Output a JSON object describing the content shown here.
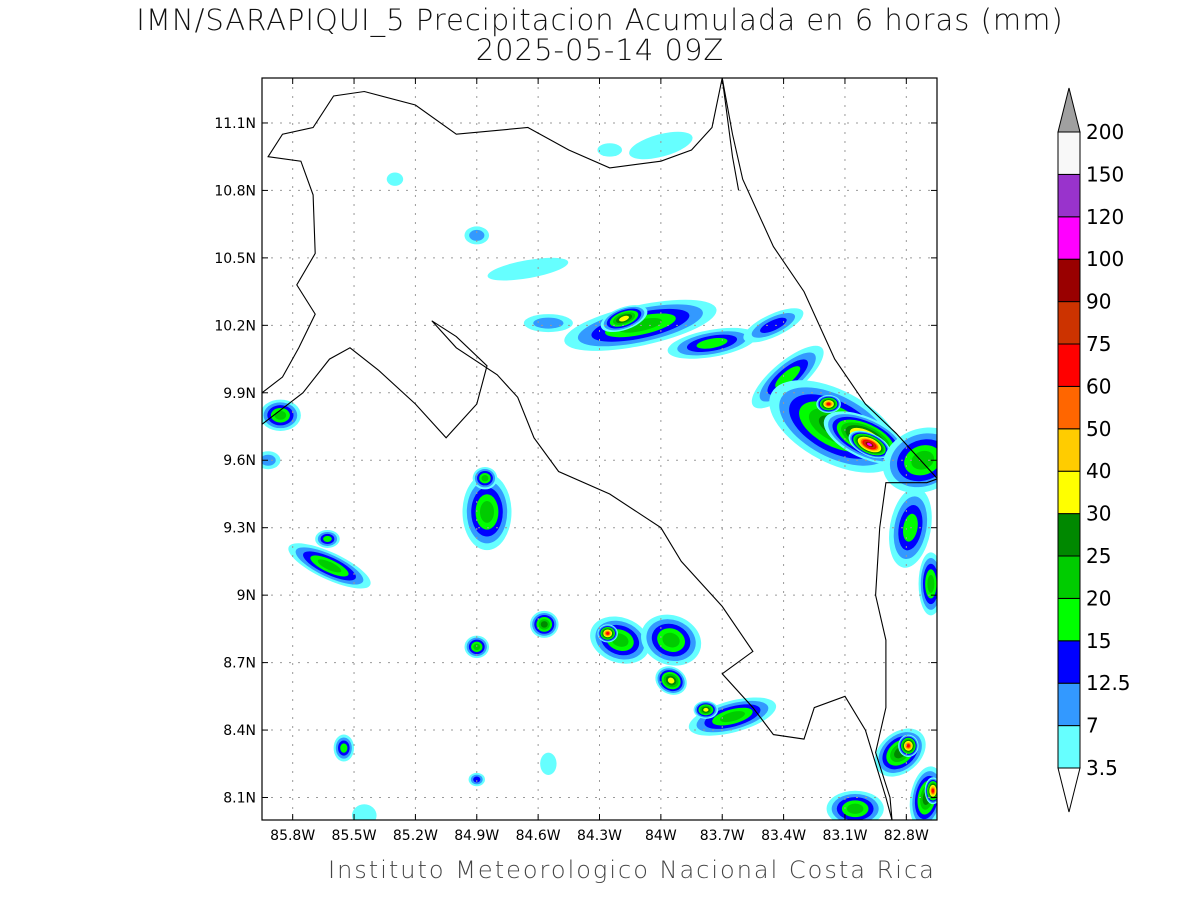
{
  "title": "IMN/SARAPIQUI_5 Precipitacion Acumulada en 6 horas (mm)",
  "subtitle": "2025-05-14 09Z",
  "footer": "Instituto Meteorologico Nacional Costa Rica",
  "map": {
    "lat_labels": [
      "11.1N",
      "10.8N",
      "10.5N",
      "10.2N",
      "9.9N",
      "9.6N",
      "9.3N",
      "9N",
      "8.7N",
      "8.4N",
      "8.1N"
    ],
    "lon_labels": [
      "85.8W",
      "85.5W",
      "85.2W",
      "84.9W",
      "84.6W",
      "84.3W",
      "84W",
      "83.7W",
      "83.4W",
      "83.1W",
      "82.8W"
    ],
    "lat_values": [
      11.1,
      10.8,
      10.5,
      10.2,
      9.9,
      9.6,
      9.3,
      9.0,
      8.7,
      8.4,
      8.1
    ],
    "lon_values": [
      -85.8,
      -85.5,
      -85.2,
      -84.9,
      -84.6,
      -84.3,
      -84.0,
      -83.7,
      -83.4,
      -83.1,
      -82.8
    ],
    "extent": {
      "lon_min": -85.95,
      "lon_max": -82.65,
      "lat_min": 8.0,
      "lat_max": 11.3
    }
  },
  "colorbar": {
    "levels": [
      "3.5",
      "7",
      "12.5",
      "15",
      "20",
      "25",
      "30",
      "40",
      "50",
      "60",
      "75",
      "90",
      "100",
      "120",
      "150",
      "200"
    ],
    "colors": [
      "#66ffff",
      "#3399ff",
      "#0000ff",
      "#00ff00",
      "#00cc00",
      "#008800",
      "#ffff00",
      "#ffcc00",
      "#ff6600",
      "#ff0000",
      "#cc3300",
      "#990000",
      "#ff00ff",
      "#9933cc",
      "#f8f8f8",
      "#a0a0a0"
    ]
  },
  "precip_cells": [
    {
      "lon": -84.1,
      "lat": 10.2,
      "rx": 0.38,
      "ry": 0.09,
      "rot": -12,
      "level": 4
    },
    {
      "lon": -84.18,
      "lat": 10.23,
      "rx": 0.12,
      "ry": 0.05,
      "rot": -20,
      "level": 6
    },
    {
      "lon": -83.75,
      "lat": 10.12,
      "rx": 0.22,
      "ry": 0.06,
      "rot": -10,
      "level": 3
    },
    {
      "lon": -83.45,
      "lat": 10.2,
      "rx": 0.16,
      "ry": 0.05,
      "rot": -25,
      "level": 2
    },
    {
      "lon": -84.55,
      "lat": 10.21,
      "rx": 0.12,
      "ry": 0.04,
      "rot": 0,
      "level": 1
    },
    {
      "lon": -84.65,
      "lat": 10.45,
      "rx": 0.2,
      "ry": 0.04,
      "rot": -10,
      "level": 0
    },
    {
      "lon": -83.38,
      "lat": 9.97,
      "rx": 0.22,
      "ry": 0.07,
      "rot": -40,
      "level": 3
    },
    {
      "lon": -83.15,
      "lat": 9.75,
      "rx": 0.35,
      "ry": 0.16,
      "rot": 28,
      "level": 5
    },
    {
      "lon": -83.0,
      "lat": 9.7,
      "rx": 0.22,
      "ry": 0.09,
      "rot": 25,
      "level": 8
    },
    {
      "lon": -82.98,
      "lat": 9.67,
      "rx": 0.11,
      "ry": 0.05,
      "rot": 25,
      "level": 12
    },
    {
      "lon": -83.18,
      "lat": 9.85,
      "rx": 0.06,
      "ry": 0.04,
      "rot": 0,
      "level": 9
    },
    {
      "lon": -82.72,
      "lat": 9.6,
      "rx": 0.2,
      "ry": 0.14,
      "rot": -20,
      "level": 4
    },
    {
      "lon": -82.78,
      "lat": 9.3,
      "rx": 0.1,
      "ry": 0.18,
      "rot": 10,
      "level": 3
    },
    {
      "lon": -82.68,
      "lat": 9.05,
      "rx": 0.06,
      "ry": 0.14,
      "rot": 0,
      "level": 4
    },
    {
      "lon": -84.85,
      "lat": 9.37,
      "rx": 0.12,
      "ry": 0.17,
      "rot": 0,
      "level": 4
    },
    {
      "lon": -84.86,
      "lat": 9.52,
      "rx": 0.06,
      "ry": 0.05,
      "rot": 0,
      "level": 4
    },
    {
      "lon": -85.62,
      "lat": 9.13,
      "rx": 0.22,
      "ry": 0.06,
      "rot": 25,
      "level": 4
    },
    {
      "lon": -85.63,
      "lat": 9.25,
      "rx": 0.06,
      "ry": 0.04,
      "rot": 0,
      "level": 3
    },
    {
      "lon": -85.86,
      "lat": 9.8,
      "rx": 0.1,
      "ry": 0.07,
      "rot": 0,
      "level": 4
    },
    {
      "lon": -85.92,
      "lat": 9.6,
      "rx": 0.06,
      "ry": 0.04,
      "rot": 0,
      "level": 1
    },
    {
      "lon": -84.2,
      "lat": 8.8,
      "rx": 0.15,
      "ry": 0.1,
      "rot": 20,
      "level": 4
    },
    {
      "lon": -84.26,
      "lat": 8.83,
      "rx": 0.05,
      "ry": 0.04,
      "rot": 0,
      "level": 9
    },
    {
      "lon": -83.95,
      "lat": 8.8,
      "rx": 0.15,
      "ry": 0.11,
      "rot": 20,
      "level": 4
    },
    {
      "lon": -83.95,
      "lat": 8.62,
      "rx": 0.08,
      "ry": 0.06,
      "rot": 30,
      "level": 6
    },
    {
      "lon": -83.65,
      "lat": 8.46,
      "rx": 0.22,
      "ry": 0.07,
      "rot": -15,
      "level": 4
    },
    {
      "lon": -83.78,
      "lat": 8.49,
      "rx": 0.06,
      "ry": 0.04,
      "rot": 0,
      "level": 6
    },
    {
      "lon": -84.57,
      "lat": 8.87,
      "rx": 0.07,
      "ry": 0.06,
      "rot": 0,
      "level": 5
    },
    {
      "lon": -84.9,
      "lat": 8.77,
      "rx": 0.06,
      "ry": 0.05,
      "rot": 0,
      "level": 4
    },
    {
      "lon": -85.55,
      "lat": 8.32,
      "rx": 0.05,
      "ry": 0.06,
      "rot": 0,
      "level": 3
    },
    {
      "lon": -82.83,
      "lat": 8.3,
      "rx": 0.14,
      "ry": 0.09,
      "rot": -40,
      "level": 5
    },
    {
      "lon": -82.79,
      "lat": 8.33,
      "rx": 0.05,
      "ry": 0.05,
      "rot": 0,
      "level": 9
    },
    {
      "lon": -82.7,
      "lat": 8.1,
      "rx": 0.08,
      "ry": 0.14,
      "rot": 10,
      "level": 5
    },
    {
      "lon": -82.67,
      "lat": 8.13,
      "rx": 0.04,
      "ry": 0.06,
      "rot": 0,
      "level": 9
    },
    {
      "lon": -83.05,
      "lat": 8.05,
      "rx": 0.14,
      "ry": 0.08,
      "rot": 0,
      "level": 4
    },
    {
      "lon": -84.0,
      "lat": 11.0,
      "rx": 0.16,
      "ry": 0.05,
      "rot": -15,
      "level": 0
    },
    {
      "lon": -84.25,
      "lat": 10.98,
      "rx": 0.06,
      "ry": 0.03,
      "rot": 0,
      "level": 0
    },
    {
      "lon": -84.9,
      "lat": 10.6,
      "rx": 0.06,
      "ry": 0.04,
      "rot": 0,
      "level": 1
    },
    {
      "lon": -85.3,
      "lat": 10.85,
      "rx": 0.04,
      "ry": 0.03,
      "rot": 0,
      "level": 0
    },
    {
      "lon": -84.9,
      "lat": 8.18,
      "rx": 0.04,
      "ry": 0.03,
      "rot": 0,
      "level": 2
    },
    {
      "lon": -84.55,
      "lat": 8.25,
      "rx": 0.04,
      "ry": 0.05,
      "rot": 0,
      "level": 0
    },
    {
      "lon": -85.45,
      "lat": 8.02,
      "rx": 0.06,
      "ry": 0.05,
      "rot": 0,
      "level": 0
    }
  ],
  "coastlines": [
    [
      [
        -85.95,
        9.9
      ],
      [
        -85.85,
        9.97
      ],
      [
        -85.77,
        10.1
      ],
      [
        -85.69,
        10.25
      ],
      [
        -85.78,
        10.38
      ],
      [
        -85.69,
        10.52
      ],
      [
        -85.7,
        10.78
      ],
      [
        -85.76,
        10.93
      ],
      [
        -85.92,
        10.95
      ],
      [
        -85.85,
        11.05
      ],
      [
        -85.7,
        11.08
      ],
      [
        -85.6,
        11.22
      ],
      [
        -85.45,
        11.24
      ],
      [
        -85.2,
        11.18
      ],
      [
        -85.0,
        11.05
      ],
      [
        -84.65,
        11.08
      ],
      [
        -84.45,
        10.98
      ],
      [
        -84.25,
        10.9
      ],
      [
        -84.0,
        10.93
      ],
      [
        -83.85,
        10.98
      ],
      [
        -83.75,
        11.08
      ],
      [
        -83.7,
        11.3
      ]
    ],
    [
      [
        -83.7,
        11.3
      ],
      [
        -83.65,
        11.05
      ],
      [
        -83.6,
        10.85
      ],
      [
        -83.45,
        10.55
      ],
      [
        -83.3,
        10.35
      ],
      [
        -83.15,
        10.05
      ],
      [
        -83.0,
        9.85
      ],
      [
        -82.85,
        9.72
      ],
      [
        -82.75,
        9.62
      ],
      [
        -82.65,
        9.52
      ]
    ],
    [
      [
        -85.95,
        9.76
      ],
      [
        -85.75,
        9.9
      ],
      [
        -85.62,
        10.05
      ],
      [
        -85.52,
        10.1
      ],
      [
        -85.38,
        10.0
      ],
      [
        -85.2,
        9.85
      ],
      [
        -85.05,
        9.7
      ],
      [
        -84.9,
        9.85
      ],
      [
        -84.85,
        10.02
      ],
      [
        -85.0,
        10.15
      ],
      [
        -85.12,
        10.22
      ],
      [
        -85.0,
        10.1
      ],
      [
        -84.8,
        9.98
      ],
      [
        -84.7,
        9.88
      ],
      [
        -84.62,
        9.7
      ],
      [
        -84.5,
        9.55
      ],
      [
        -84.25,
        9.45
      ],
      [
        -84.0,
        9.3
      ],
      [
        -83.9,
        9.15
      ],
      [
        -83.7,
        8.95
      ],
      [
        -83.55,
        8.75
      ],
      [
        -83.7,
        8.65
      ],
      [
        -83.55,
        8.5
      ],
      [
        -83.45,
        8.38
      ],
      [
        -83.3,
        8.36
      ],
      [
        -83.25,
        8.5
      ],
      [
        -83.1,
        8.55
      ],
      [
        -83.0,
        8.4
      ],
      [
        -82.9,
        8.1
      ],
      [
        -82.87,
        8.0
      ]
    ]
  ],
  "borders": [
    [
      [
        -83.7,
        11.3
      ],
      [
        -83.65,
        10.95
      ],
      [
        -83.62,
        10.8
      ]
    ],
    [
      [
        -82.55,
        9.55
      ],
      [
        -82.7,
        9.5
      ],
      [
        -82.9,
        9.5
      ],
      [
        -82.93,
        9.3
      ],
      [
        -82.95,
        9.0
      ],
      [
        -82.9,
        8.8
      ],
      [
        -82.9,
        8.5
      ],
      [
        -82.95,
        8.3
      ],
      [
        -82.88,
        8.1
      ],
      [
        -82.87,
        8.0
      ]
    ]
  ]
}
